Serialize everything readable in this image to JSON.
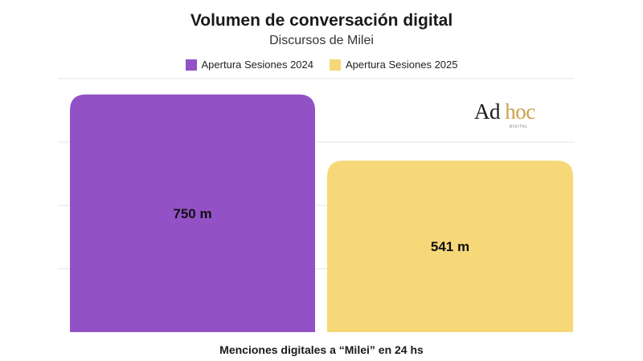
{
  "chart_data": {
    "type": "bar",
    "title": "Volumen de conversación digital",
    "subtitle": "Discursos de Milei",
    "categories": [
      "Apertura Sesiones 2024",
      "Apertura Sesiones 2025"
    ],
    "series": [
      {
        "name": "Apertura Sesiones 2024",
        "value": 750,
        "label": "750 m",
        "color": "#9351c6"
      },
      {
        "name": "Apertura Sesiones 2025",
        "value": 541,
        "label": "541 m",
        "color": "#f6d878"
      }
    ],
    "xlabel": "Menciones digitales a “Milei” en 24 hs",
    "ylabel": "",
    "ylim": [
      0,
      800
    ],
    "grid": true,
    "legend_position": "top-center"
  },
  "logo": {
    "part1": "Ad",
    "part2": "hoc",
    "sub": "DIGITAL"
  }
}
